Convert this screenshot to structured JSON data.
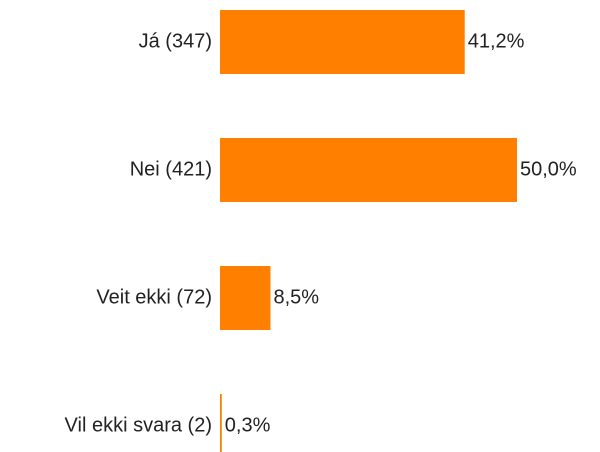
{
  "chart_data": {
    "type": "bar",
    "orientation": "horizontal",
    "categories": [
      "Já (347)",
      "Nei (421)",
      "Veit ekki (72)",
      "Vil ekki svara (2)"
    ],
    "values": [
      41.2,
      50.0,
      8.5,
      0.3
    ],
    "value_labels": [
      "41,2%",
      "50,0%",
      "8,5%",
      "0,3%"
    ],
    "color": "#ff8000"
  }
}
